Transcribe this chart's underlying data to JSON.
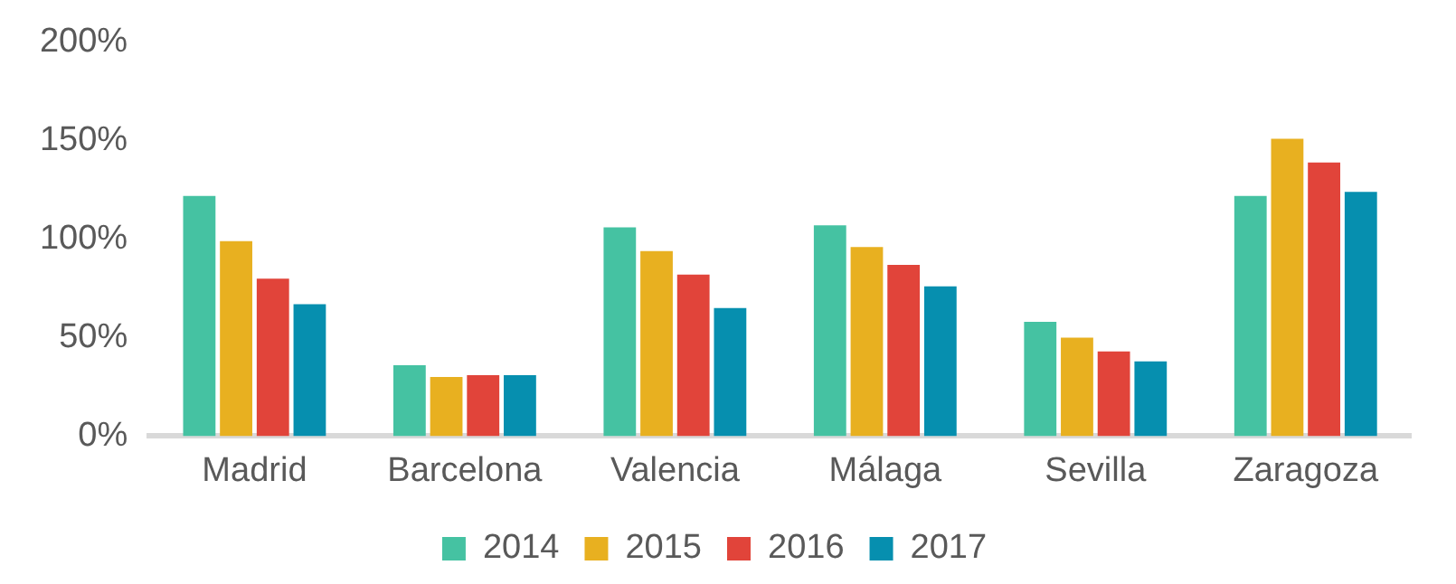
{
  "chart_data": {
    "type": "bar",
    "categories": [
      "Madrid",
      "Barcelona",
      "Valencia",
      "Málaga",
      "Sevilla",
      "Zaragoza"
    ],
    "series": [
      {
        "name": "2014",
        "color": "#45c2a2",
        "values": [
          122,
          36,
          106,
          107,
          58,
          122
        ]
      },
      {
        "name": "2015",
        "color": "#e8b020",
        "values": [
          99,
          30,
          94,
          96,
          50,
          151
        ]
      },
      {
        "name": "2016",
        "color": "#e1443a",
        "values": [
          80,
          31,
          82,
          87,
          43,
          139
        ]
      },
      {
        "name": "2017",
        "color": "#068faf",
        "values": [
          67,
          31,
          65,
          76,
          38,
          124
        ]
      }
    ],
    "ylim": [
      0,
      200
    ],
    "yticks": [
      {
        "value": 0,
        "label": "0%"
      },
      {
        "value": 50,
        "label": "50%"
      },
      {
        "value": 100,
        "label": "100%"
      },
      {
        "value": 150,
        "label": "150%"
      },
      {
        "value": 200,
        "label": "200%"
      }
    ],
    "grid": false,
    "legend": "bottom"
  }
}
